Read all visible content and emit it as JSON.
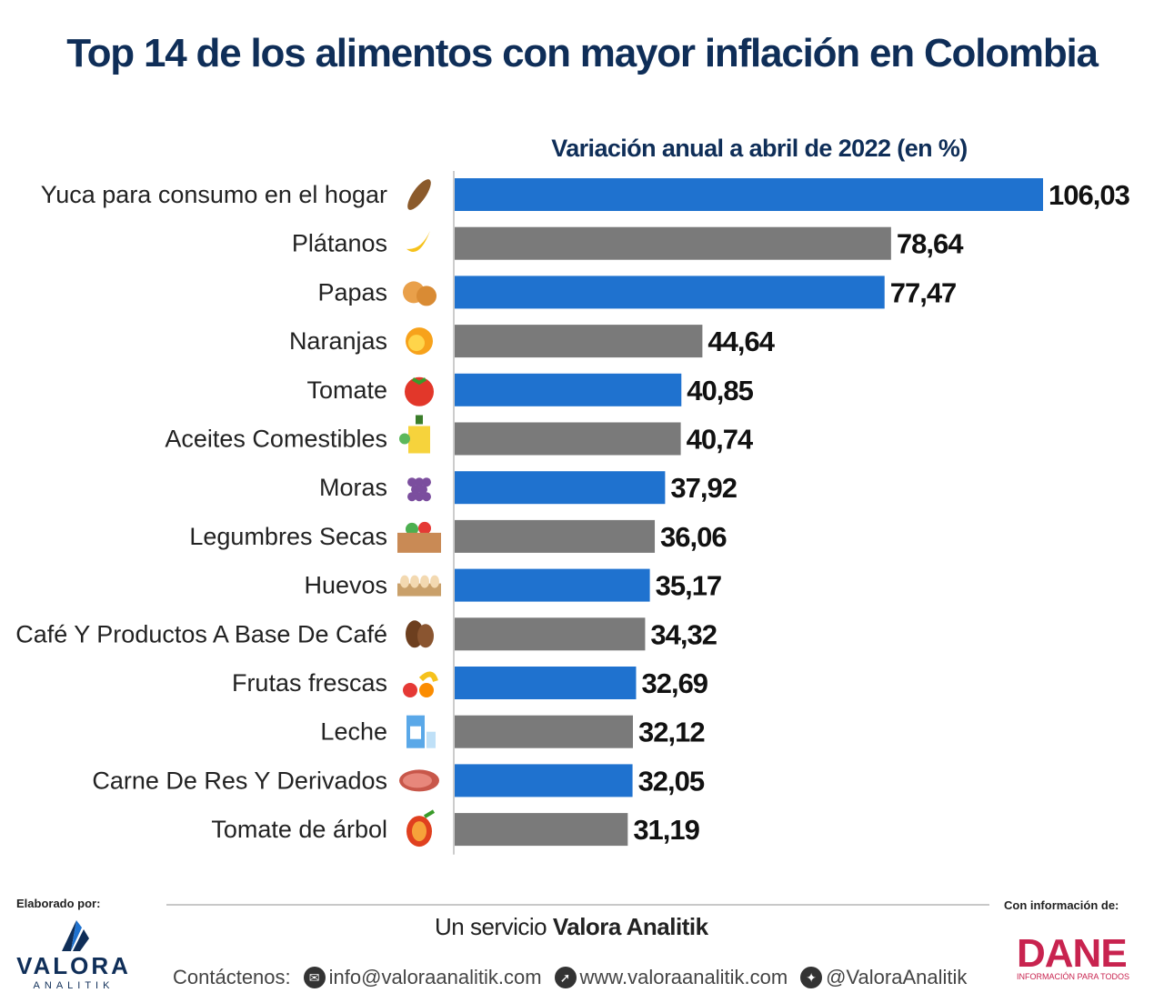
{
  "title": "Top 14 de los alimentos con mayor inflación en Colombia",
  "chart_data": {
    "type": "bar",
    "orientation": "horizontal",
    "title": "Top 14 de los alimentos con mayor inflación en Colombia",
    "subtitle": "Variación anual a abril de 2022 (en %)",
    "categories": [
      "Yuca para consumo en el hogar",
      "Plátanos",
      "Papas",
      "Naranjas",
      "Tomate",
      "Aceites Comestibles",
      "Moras",
      "Legumbres Secas",
      "Huevos",
      "Café Y Productos A Base De Café",
      "Frutas frescas",
      "Leche",
      "Carne De Res Y Derivados",
      "Tomate de árbol"
    ],
    "values": [
      106.03,
      78.64,
      77.47,
      44.64,
      40.85,
      40.74,
      37.92,
      36.06,
      35.17,
      34.32,
      32.69,
      32.12,
      32.05,
      31.19
    ],
    "value_labels": [
      "106,03",
      "78,64",
      "77,47",
      "44,64",
      "40,85",
      "40,74",
      "37,92",
      "36,06",
      "35,17",
      "34,32",
      "32,69",
      "32,12",
      "32,05",
      "31,19"
    ],
    "icons": [
      "cassava-icon",
      "banana-icon",
      "potato-icon",
      "orange-icon",
      "tomato-icon",
      "oil-bottle-icon",
      "blackberry-icon",
      "vegetable-crate-icon",
      "egg-carton-icon",
      "coffee-bean-icon",
      "fruit-mix-icon",
      "milk-icon",
      "steak-icon",
      "tree-tomato-icon"
    ],
    "colors": [
      "#1f72cf",
      "#7a7a7a"
    ],
    "xlim": [
      0,
      106.03
    ],
    "grid": false,
    "legend": "none"
  },
  "footer": {
    "elaborado": "Elaborado por:",
    "con_info": "Con información de:",
    "service_prefix": "Un servicio ",
    "service_name": "Valora Analitik",
    "valora_logo_main": "VALORA",
    "valora_logo_sub": "ANALITIK",
    "contact_label": "Contáctenos:",
    "email": "info@valoraanalitik.com",
    "website": "www.valoraanalitik.com",
    "twitter": "@ValoraAnalitik",
    "dane": "DANE",
    "dane_sub": "INFORMACIÓN PARA TODOS"
  }
}
